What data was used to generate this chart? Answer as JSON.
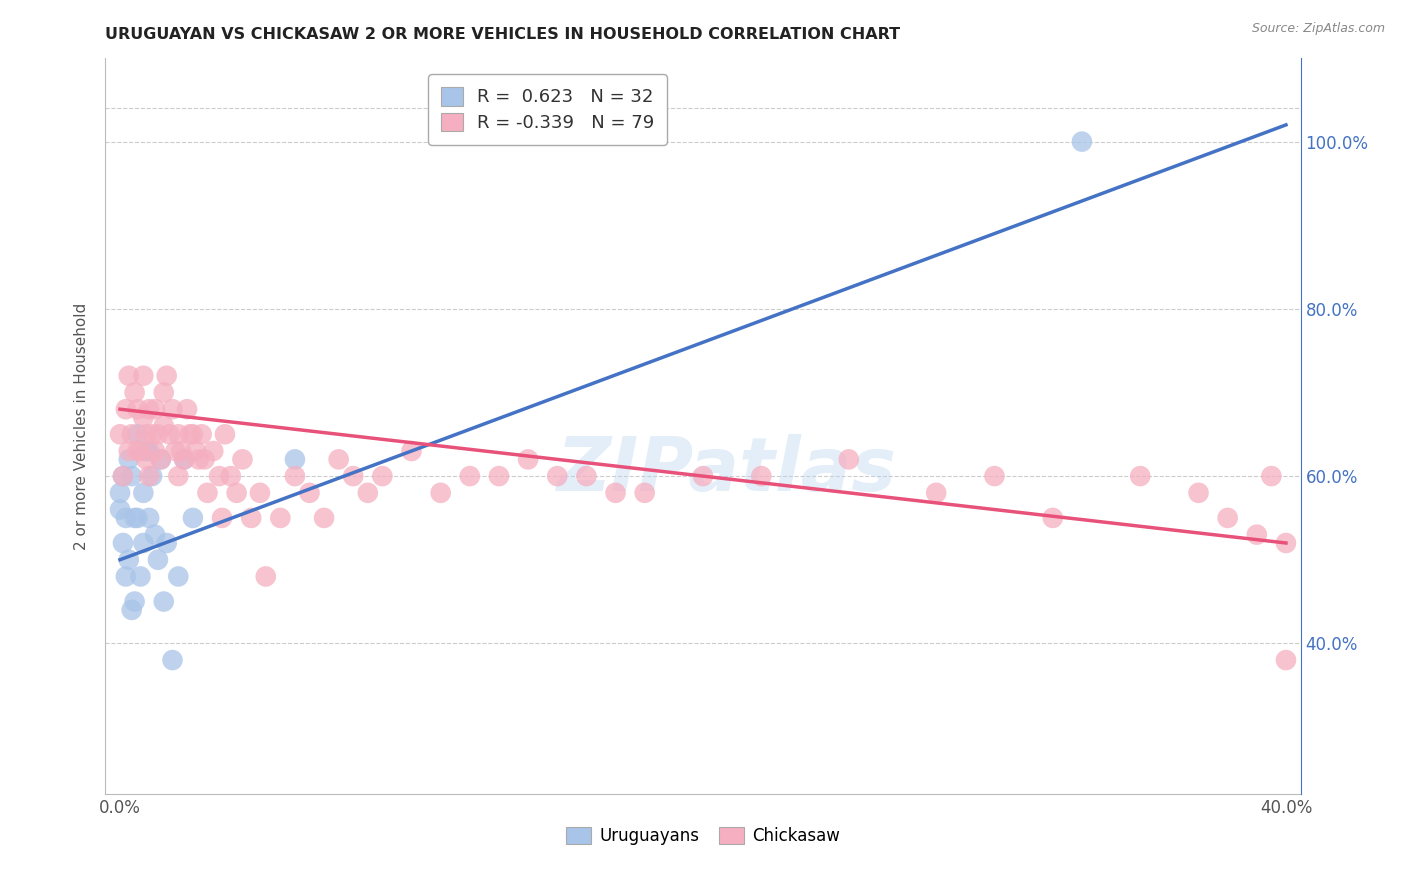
{
  "title": "URUGUAYAN VS CHICKASAW 2 OR MORE VEHICLES IN HOUSEHOLD CORRELATION CHART",
  "source": "Source: ZipAtlas.com",
  "ylabel": "2 or more Vehicles in Household",
  "legend_r_blue": "0.623",
  "legend_n_blue": "32",
  "legend_r_pink": "-0.339",
  "legend_n_pink": "79",
  "legend_label_blue": "Uruguayans",
  "legend_label_pink": "Chickasaw",
  "blue_color": "#a8c4e8",
  "pink_color": "#f5afc0",
  "line_blue_color": "#4472c4",
  "line_pink_color": "#e8527a",
  "watermark": "ZIPatlas",
  "blue_line_x0": 0.0,
  "blue_line_y0": 0.5,
  "blue_line_x1": 0.4,
  "blue_line_y1": 1.02,
  "pink_line_x0": 0.0,
  "pink_line_y0": 0.68,
  "pink_line_x1": 0.4,
  "pink_line_y1": 0.52,
  "background_color": "#ffffff",
  "grid_color": "#cccccc",
  "blue_pts_x": [
    0.0,
    0.0,
    0.001,
    0.001,
    0.002,
    0.002,
    0.003,
    0.003,
    0.004,
    0.004,
    0.005,
    0.005,
    0.006,
    0.006,
    0.007,
    0.008,
    0.008,
    0.009,
    0.01,
    0.01,
    0.011,
    0.012,
    0.013,
    0.014,
    0.015,
    0.016,
    0.018,
    0.02,
    0.022,
    0.025,
    0.06,
    0.33
  ],
  "blue_pts_y": [
    0.56,
    0.58,
    0.52,
    0.6,
    0.48,
    0.55,
    0.5,
    0.62,
    0.44,
    0.6,
    0.45,
    0.55,
    0.65,
    0.55,
    0.48,
    0.58,
    0.52,
    0.63,
    0.55,
    0.63,
    0.6,
    0.53,
    0.5,
    0.62,
    0.45,
    0.52,
    0.38,
    0.48,
    0.62,
    0.55,
    0.62,
    1.0
  ],
  "pink_pts_x": [
    0.0,
    0.001,
    0.002,
    0.003,
    0.003,
    0.004,
    0.005,
    0.006,
    0.006,
    0.007,
    0.008,
    0.008,
    0.009,
    0.009,
    0.01,
    0.01,
    0.011,
    0.012,
    0.012,
    0.013,
    0.014,
    0.015,
    0.015,
    0.016,
    0.017,
    0.018,
    0.019,
    0.02,
    0.02,
    0.021,
    0.022,
    0.023,
    0.024,
    0.025,
    0.026,
    0.027,
    0.028,
    0.029,
    0.03,
    0.032,
    0.034,
    0.035,
    0.036,
    0.038,
    0.04,
    0.042,
    0.045,
    0.048,
    0.05,
    0.055,
    0.06,
    0.065,
    0.07,
    0.075,
    0.08,
    0.085,
    0.09,
    0.1,
    0.11,
    0.12,
    0.13,
    0.14,
    0.15,
    0.16,
    0.17,
    0.18,
    0.2,
    0.22,
    0.25,
    0.28,
    0.3,
    0.32,
    0.35,
    0.37,
    0.38,
    0.39,
    0.395,
    0.4,
    0.4
  ],
  "pink_pts_y": [
    0.65,
    0.6,
    0.68,
    0.63,
    0.72,
    0.65,
    0.7,
    0.63,
    0.68,
    0.63,
    0.67,
    0.72,
    0.62,
    0.65,
    0.6,
    0.68,
    0.65,
    0.63,
    0.68,
    0.65,
    0.62,
    0.66,
    0.7,
    0.72,
    0.65,
    0.68,
    0.63,
    0.6,
    0.65,
    0.63,
    0.62,
    0.68,
    0.65,
    0.65,
    0.63,
    0.62,
    0.65,
    0.62,
    0.58,
    0.63,
    0.6,
    0.55,
    0.65,
    0.6,
    0.58,
    0.62,
    0.55,
    0.58,
    0.48,
    0.55,
    0.6,
    0.58,
    0.55,
    0.62,
    0.6,
    0.58,
    0.6,
    0.63,
    0.58,
    0.6,
    0.6,
    0.62,
    0.6,
    0.6,
    0.58,
    0.58,
    0.6,
    0.6,
    0.62,
    0.58,
    0.6,
    0.55,
    0.6,
    0.58,
    0.55,
    0.53,
    0.6,
    0.52,
    0.38
  ],
  "xmin": -0.005,
  "xmax": 0.405,
  "ymin": 0.22,
  "ymax": 1.1,
  "x_ticks": [
    0.0,
    0.05,
    0.1,
    0.15,
    0.2,
    0.25,
    0.3,
    0.35,
    0.4
  ],
  "x_tick_labels": [
    "0.0%",
    "",
    "",
    "",
    "",
    "",
    "",
    "",
    "40.0%"
  ],
  "y_ticks": [
    0.4,
    0.6,
    0.8,
    1.0
  ],
  "y_tick_labels": [
    "40.0%",
    "60.0%",
    "80.0%",
    "100.0%"
  ]
}
